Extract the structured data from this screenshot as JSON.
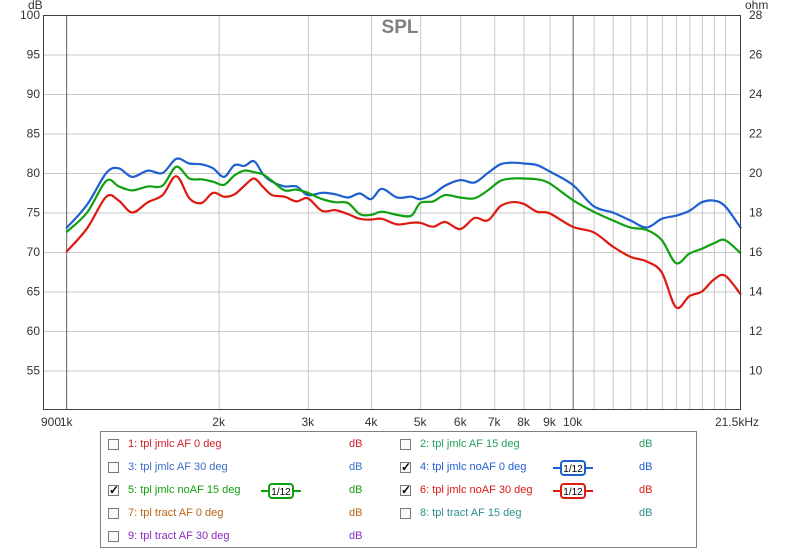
{
  "chart_data": {
    "type": "line",
    "title": "SPL",
    "left_axis_unit": "dB",
    "right_axis_unit": "ohm",
    "x_unit": "kHz",
    "x_scale": "log",
    "xlim": [
      900,
      21500
    ],
    "ylim": [
      50,
      100
    ],
    "ylim_right": [
      8,
      28
    ],
    "x_ticks": [
      {
        "value": 900,
        "label": "900"
      },
      {
        "value": 1000,
        "label": "1k"
      },
      {
        "value": 2000,
        "label": "2k"
      },
      {
        "value": 3000,
        "label": "3k"
      },
      {
        "value": 4000,
        "label": "4k"
      },
      {
        "value": 5000,
        "label": "5k"
      },
      {
        "value": 6000,
        "label": "6k"
      },
      {
        "value": 7000,
        "label": "7k"
      },
      {
        "value": 8000,
        "label": "8k"
      },
      {
        "value": 9000,
        "label": "9k"
      },
      {
        "value": 10000,
        "label": "10k"
      },
      {
        "value": 21500,
        "label": "21.5kHz"
      }
    ],
    "y_ticks_left": [
      "100",
      "95",
      "90",
      "85",
      "80",
      "75",
      "70",
      "65",
      "60",
      "55"
    ],
    "y_ticks_right": [
      "28",
      "26",
      "24",
      "22",
      "20",
      "18",
      "16",
      "14",
      "12",
      "10"
    ],
    "grid": true,
    "series": [
      {
        "name": "4: tpl jmlc noAF 0 deg",
        "color": "#1f5fd0",
        "x": [
          1000,
          1100,
          1200,
          1270,
          1350,
          1450,
          1550,
          1650,
          1750,
          1850,
          1950,
          2050,
          2150,
          2250,
          2350,
          2450,
          2550,
          2700,
          2850,
          3000,
          3200,
          3400,
          3600,
          3800,
          4000,
          4200,
          4500,
          4800,
          5000,
          5300,
          5600,
          6000,
          6400,
          6800,
          7200,
          7600,
          8000,
          8500,
          9000,
          10000,
          11000,
          12000,
          13000,
          14000,
          15000,
          16000,
          17000,
          18000,
          19000,
          20000,
          21500
        ],
        "y": [
          73,
          76,
          80,
          80.6,
          79.5,
          80.3,
          80,
          81.8,
          81.2,
          81.1,
          80.6,
          79.5,
          81,
          80.9,
          81.5,
          79.8,
          78.9,
          78.3,
          78.3,
          77.2,
          77.5,
          77.3,
          76.9,
          77.4,
          76.7,
          78,
          76.9,
          77,
          76.7,
          77.3,
          78.4,
          79.1,
          78.8,
          80,
          81.1,
          81.3,
          81.2,
          81,
          80.2,
          78.5,
          75.8,
          75,
          74,
          73.1,
          74.2,
          74.6,
          75.2,
          76.3,
          76.5,
          75.8,
          73
        ]
      },
      {
        "name": "5: tpl jmlc noAF 15 deg",
        "color": "#10a010",
        "x": [
          1000,
          1100,
          1200,
          1270,
          1350,
          1450,
          1550,
          1650,
          1750,
          1850,
          1950,
          2050,
          2150,
          2250,
          2350,
          2450,
          2550,
          2700,
          2850,
          3000,
          3200,
          3400,
          3600,
          3800,
          4000,
          4200,
          4500,
          4800,
          5000,
          5300,
          5600,
          6000,
          6400,
          6800,
          7200,
          7600,
          8000,
          8500,
          9000,
          10000,
          11000,
          12000,
          13000,
          14000,
          15000,
          16000,
          17000,
          18000,
          19000,
          20000,
          21500
        ],
        "y": [
          72.5,
          75,
          79,
          78.3,
          77.8,
          78.3,
          78.4,
          80.8,
          79.3,
          79.2,
          78.9,
          78.5,
          79.7,
          80.3,
          80.1,
          79.8,
          79,
          77.8,
          77.9,
          77.5,
          76.7,
          76.3,
          76.2,
          74.8,
          74.7,
          75.1,
          74.7,
          74.6,
          76.2,
          76.4,
          77.2,
          76.9,
          76.8,
          77.8,
          79,
          79.3,
          79.3,
          79.2,
          78.7,
          76.6,
          75.1,
          74,
          73.1,
          72.8,
          71.5,
          68.6,
          69.8,
          70.4,
          71.1,
          71.5,
          69.8
        ]
      },
      {
        "name": "6: tpl jmlc noAF 30 deg",
        "color": "#dd1a10",
        "x": [
          1000,
          1100,
          1200,
          1270,
          1350,
          1450,
          1550,
          1650,
          1750,
          1850,
          1950,
          2050,
          2150,
          2250,
          2350,
          2450,
          2550,
          2700,
          2850,
          3000,
          3200,
          3400,
          3600,
          3800,
          4000,
          4200,
          4500,
          4800,
          5000,
          5300,
          5600,
          6000,
          6400,
          6800,
          7200,
          7600,
          8000,
          8500,
          9000,
          10000,
          11000,
          12000,
          13000,
          14000,
          15000,
          16000,
          17000,
          18000,
          19000,
          20000,
          21500
        ],
        "y": [
          70,
          73,
          77,
          76.5,
          75,
          76.3,
          77.2,
          79.6,
          76.8,
          76.2,
          77.5,
          77,
          77.3,
          78.4,
          79.3,
          78.2,
          77.2,
          77,
          76.4,
          76.8,
          75.2,
          75.3,
          74.8,
          74.2,
          74.1,
          74.2,
          73.5,
          73.7,
          73.7,
          73.2,
          73.8,
          72.9,
          74.3,
          74,
          75.8,
          76.3,
          76.1,
          75.1,
          74.9,
          73.2,
          72.5,
          70.7,
          69.4,
          68.8,
          67.4,
          63,
          64.4,
          65,
          66.5,
          67,
          64.6
        ]
      }
    ]
  },
  "legend": {
    "items": [
      {
        "id": 1,
        "label": "1: tpl jmlc AF 0 deg",
        "color": "#d0202a",
        "checked": false,
        "unit": "dB",
        "smoothing": ""
      },
      {
        "id": 2,
        "label": "2: tpl jmlc AF 15 deg",
        "color": "#23a05c",
        "checked": false,
        "unit": "dB",
        "smoothing": ""
      },
      {
        "id": 3,
        "label": "3: tpl jmlc AF 30 deg",
        "color": "#3b6cc8",
        "checked": false,
        "unit": "dB",
        "smoothing": ""
      },
      {
        "id": 4,
        "label": "4: tpl jmlc noAF 0 deg",
        "color": "#1f5fd0",
        "checked": true,
        "unit": "dB",
        "smoothing": "1/12"
      },
      {
        "id": 5,
        "label": "5: tpl jmlc noAF 15 deg",
        "color": "#10a010",
        "checked": true,
        "unit": "dB",
        "smoothing": "1/12"
      },
      {
        "id": 6,
        "label": "6: tpl jmlc noAF 30 deg",
        "color": "#dd1a10",
        "checked": true,
        "unit": "dB",
        "smoothing": "1/12"
      },
      {
        "id": 7,
        "label": "7: tpl tract AF 0 deg",
        "color": "#b8641a",
        "checked": false,
        "unit": "dB",
        "smoothing": ""
      },
      {
        "id": 8,
        "label": "8: tpl tract AF 15 deg",
        "color": "#2a8f8c",
        "checked": false,
        "unit": "dB",
        "smoothing": ""
      },
      {
        "id": 9,
        "label": "9: tpl tract AF 30 deg",
        "color": "#8a2ac0",
        "checked": false,
        "unit": "dB",
        "smoothing": ""
      }
    ]
  }
}
